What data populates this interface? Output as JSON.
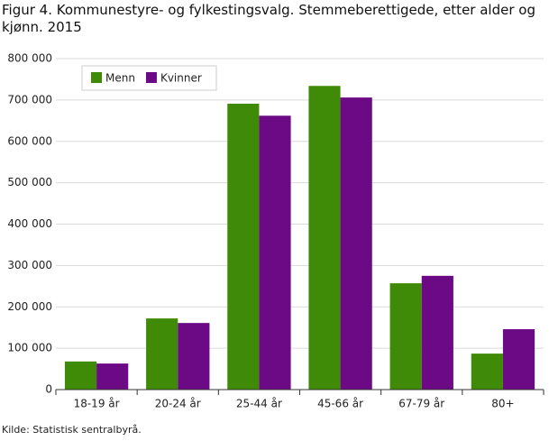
{
  "chart_data": {
    "type": "grouped-bar",
    "title": "Figur 4. Kommunestyre- og fylkestingsvalg. Stemmeberettigede, etter alder og kjønn. 2015",
    "source": "Kilde: Statistisk sentralbyrå.",
    "categories": [
      "18-19 år",
      "20-24 år",
      "25-44 år",
      "45-66 år",
      "67-79 år",
      "80+"
    ],
    "series": [
      {
        "name": "Menn",
        "color": "#3f8a06",
        "values": [
          68000,
          172000,
          691000,
          734000,
          257000,
          87000
        ]
      },
      {
        "name": "Kvinner",
        "color": "#6c0a85",
        "values": [
          63000,
          161000,
          662000,
          706000,
          275000,
          146000
        ]
      }
    ],
    "ylim": [
      0,
      800000
    ],
    "yticks": [
      0,
      {
        "value": 100000,
        "label": "100 000"
      },
      {
        "value": 200000,
        "label": "200 000"
      },
      {
        "value": 300000,
        "label": "300 000"
      },
      {
        "value": 400000,
        "label": "400 000"
      },
      {
        "value": 500000,
        "label": "500 000"
      },
      {
        "value": 600000,
        "label": "600 000"
      },
      {
        "value": 700000,
        "label": "700 000"
      },
      {
        "value": 800000,
        "label": "800 000"
      }
    ],
    "grid": true,
    "legend": "top-left"
  }
}
